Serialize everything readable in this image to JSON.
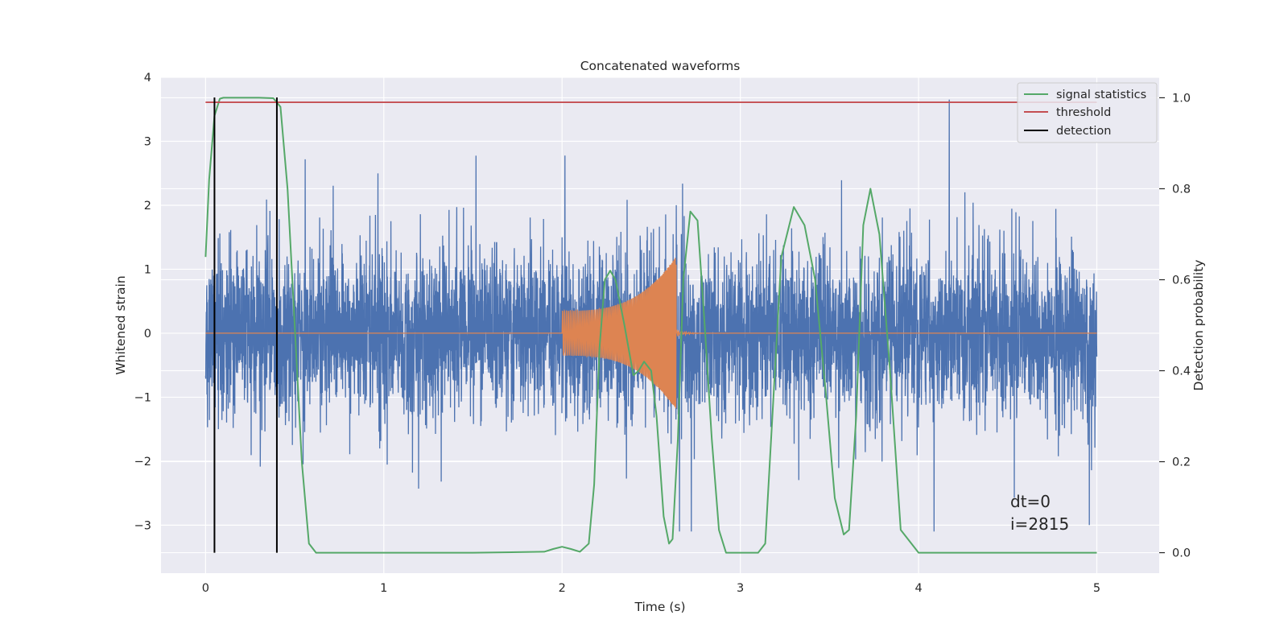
{
  "chart_data": {
    "type": "line",
    "title": "Concatenated waveforms",
    "xlabel": "Time (s)",
    "ylabel_left": "Whitened strain",
    "ylabel_right": "Detection probability",
    "xlim": [
      -0.25,
      5.35
    ],
    "ylim_left": [
      -3.75,
      4.0
    ],
    "ylim_right": [
      -0.045,
      1.045
    ],
    "xticks": [
      0,
      1,
      2,
      3,
      4,
      5
    ],
    "yticks_left": [
      -3,
      -2,
      -1,
      0,
      1,
      2,
      3,
      4
    ],
    "yticks_right": [
      0.0,
      0.2,
      0.4,
      0.6,
      0.8,
      1.0
    ],
    "xtick_labels": [
      "0",
      "1",
      "2",
      "3",
      "4",
      "5"
    ],
    "ytick_labels_left": [
      "−3",
      "−2",
      "−1",
      "0",
      "1",
      "2",
      "3",
      "4"
    ],
    "ytick_labels_right": [
      "0.0",
      "0.2",
      "0.4",
      "0.6",
      "0.8",
      "1.0"
    ],
    "grid": true,
    "legend_position": "top-right",
    "legend": [
      {
        "label": "signal statistics",
        "color": "#55a868"
      },
      {
        "label": "threshold",
        "color": "#c44e52"
      },
      {
        "label": "detection",
        "color": "#000000"
      }
    ],
    "series": [
      {
        "kind": "noise",
        "axis": "left",
        "color": "#4c72b0",
        "x_range": [
          0,
          5
        ],
        "amplitude_typical": 1.8,
        "peak_max": 3.65,
        "peak_min": -3.1
      },
      {
        "kind": "chirp",
        "axis": "left",
        "color": "#dd8452",
        "x_start": 2.0,
        "x_end": 2.64,
        "amplitude_start": 0.35,
        "amplitude_end": 1.2,
        "baseline": 0
      },
      {
        "name": "signal statistics",
        "axis": "right",
        "color": "#55a868",
        "x": [
          0,
          0.02,
          0.05,
          0.08,
          0.1,
          0.2,
          0.3,
          0.38,
          0.42,
          0.46,
          0.5,
          0.54,
          0.58,
          0.62,
          1.0,
          1.5,
          1.9,
          1.95,
          2.0,
          2.05,
          2.1,
          2.15,
          2.18,
          2.21,
          2.24,
          2.27,
          2.3,
          2.35,
          2.4,
          2.43,
          2.46,
          2.5,
          2.53,
          2.57,
          2.6,
          2.62,
          2.65,
          2.68,
          2.72,
          2.76,
          2.8,
          2.84,
          2.88,
          2.92,
          2.96,
          3.1,
          3.14,
          3.18,
          3.23,
          3.3,
          3.36,
          3.42,
          3.48,
          3.53,
          3.58,
          3.61,
          3.65,
          3.69,
          3.73,
          3.78,
          3.84,
          3.9,
          4.0,
          4.5,
          5.0
        ],
        "y": [
          0.65,
          0.82,
          0.96,
          0.998,
          1.0,
          1.0,
          1.0,
          0.999,
          0.98,
          0.8,
          0.5,
          0.2,
          0.02,
          0.0,
          0.0,
          0.0,
          0.002,
          0.008,
          0.013,
          0.008,
          0.002,
          0.02,
          0.15,
          0.45,
          0.6,
          0.62,
          0.6,
          0.5,
          0.39,
          0.4,
          0.42,
          0.4,
          0.3,
          0.08,
          0.02,
          0.03,
          0.25,
          0.6,
          0.75,
          0.73,
          0.5,
          0.25,
          0.05,
          0.0,
          0.0,
          0.0,
          0.02,
          0.3,
          0.65,
          0.76,
          0.72,
          0.6,
          0.35,
          0.12,
          0.04,
          0.05,
          0.3,
          0.72,
          0.8,
          0.7,
          0.4,
          0.05,
          0.0,
          0.0,
          0.0
        ]
      },
      {
        "name": "threshold",
        "axis": "right",
        "color": "#c44e52",
        "x": [
          0,
          5
        ],
        "y": [
          0.99,
          0.99
        ]
      },
      {
        "name": "detection",
        "axis": "right",
        "color": "#000000",
        "vlines": [
          0.05,
          0.4
        ],
        "y_range": [
          0.0,
          0.99
        ]
      }
    ],
    "annotation": {
      "lines": [
        "dt=0",
        "i=2815"
      ],
      "x": 4.5,
      "y_right": 0.08
    }
  }
}
